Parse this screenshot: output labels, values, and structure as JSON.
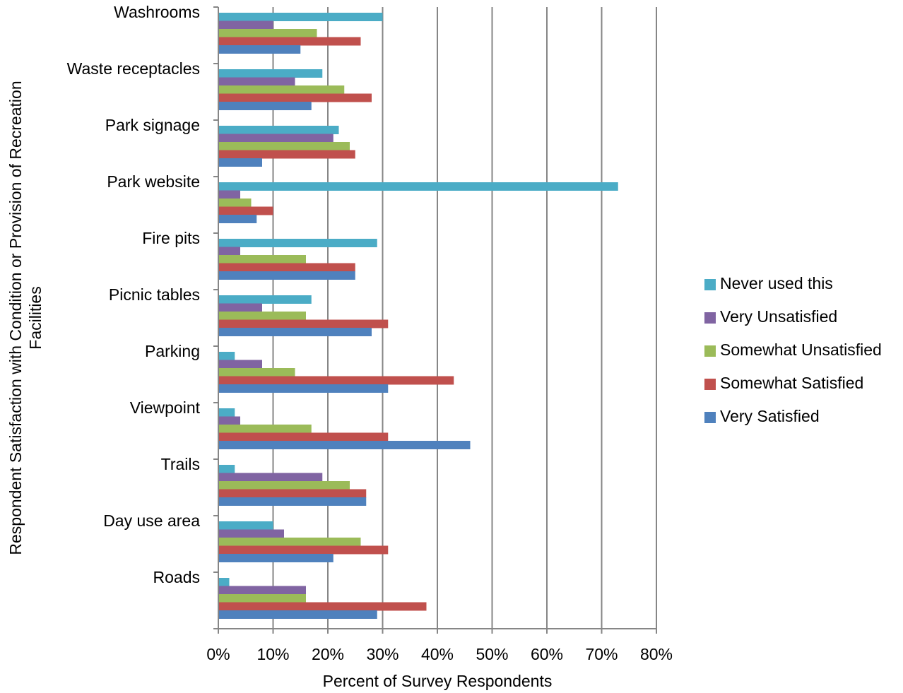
{
  "chart_data": {
    "type": "bar",
    "orientation": "horizontal",
    "xlabel": "Percent of Survey Respondents",
    "ylabel": "Respondent Satisfaction with Condition or Provision of Recreation Facilities",
    "xlim": [
      0,
      80
    ],
    "x_ticks": [
      "0%",
      "10%",
      "20%",
      "30%",
      "40%",
      "50%",
      "60%",
      "70%",
      "80%"
    ],
    "grid": "vertical",
    "legend_position": "right",
    "categories": [
      "Washrooms",
      "Waste receptacles",
      "Park signage",
      "Park website",
      "Fire pits",
      "Picnic tables",
      "Parking",
      "Viewpoint",
      "Trails",
      "Day use area",
      "Roads"
    ],
    "series": [
      {
        "name": "Never used this",
        "color": "#4bacc6",
        "values": [
          30,
          19,
          22,
          73,
          29,
          17,
          3,
          3,
          3,
          10,
          2
        ]
      },
      {
        "name": "Very Unsatisfied",
        "color": "#8064a2",
        "values": [
          10,
          14,
          21,
          4,
          4,
          8,
          8,
          4,
          19,
          12,
          16
        ]
      },
      {
        "name": "Somewhat Unsatisfied",
        "color": "#9bbb59",
        "values": [
          18,
          23,
          24,
          6,
          16,
          16,
          14,
          17,
          24,
          26,
          16
        ]
      },
      {
        "name": "Somewhat Satisfied",
        "color": "#c0504d",
        "values": [
          26,
          28,
          25,
          10,
          25,
          31,
          43,
          31,
          27,
          31,
          38
        ]
      },
      {
        "name": "Very Satisfied",
        "color": "#4f81bd",
        "values": [
          15,
          17,
          8,
          7,
          25,
          28,
          31,
          46,
          27,
          21,
          29
        ]
      }
    ]
  }
}
